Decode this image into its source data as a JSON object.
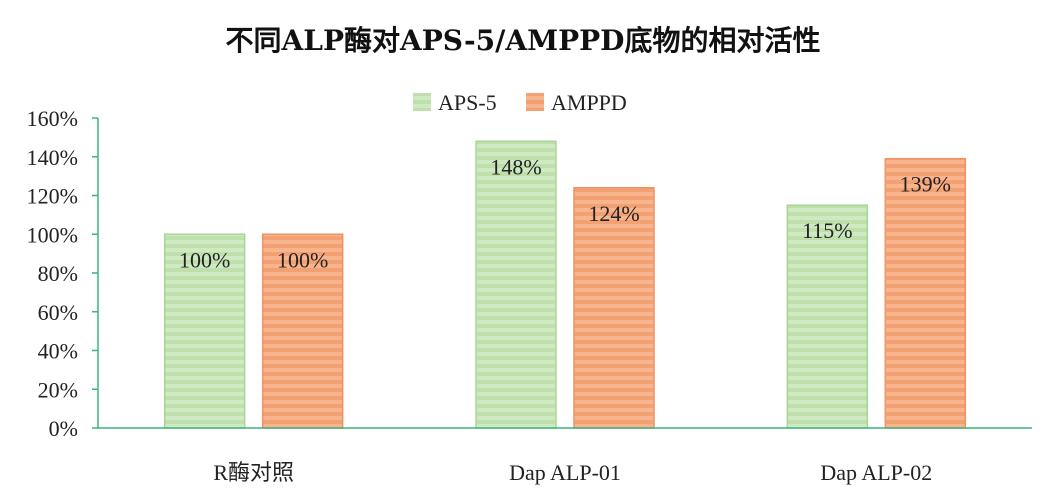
{
  "chart_data": {
    "type": "bar",
    "title": "不同ALP酶对APS-5/AMPPD底物的相对活性",
    "xlabel": "",
    "ylabel": "",
    "categories": [
      "R酶对照",
      "Dap ALP-01",
      "Dap ALP-02"
    ],
    "series": [
      {
        "name": "APS-5",
        "values": [
          100,
          148,
          115
        ],
        "labels": [
          "100%",
          "148%",
          "115%"
        ],
        "color": "#c6e4b8"
      },
      {
        "name": "AMPPD",
        "values": [
          100,
          124,
          139
        ],
        "labels": [
          "100%",
          "124%",
          "139%"
        ],
        "color": "#f5a97f"
      }
    ],
    "ylim": [
      0,
      160
    ],
    "yticks": [
      "0%",
      "20%",
      "40%",
      "60%",
      "80%",
      "100%",
      "120%",
      "140%",
      "160%"
    ],
    "grid": false,
    "legend_position": "top-center",
    "axis_color": "#3ab57a"
  }
}
